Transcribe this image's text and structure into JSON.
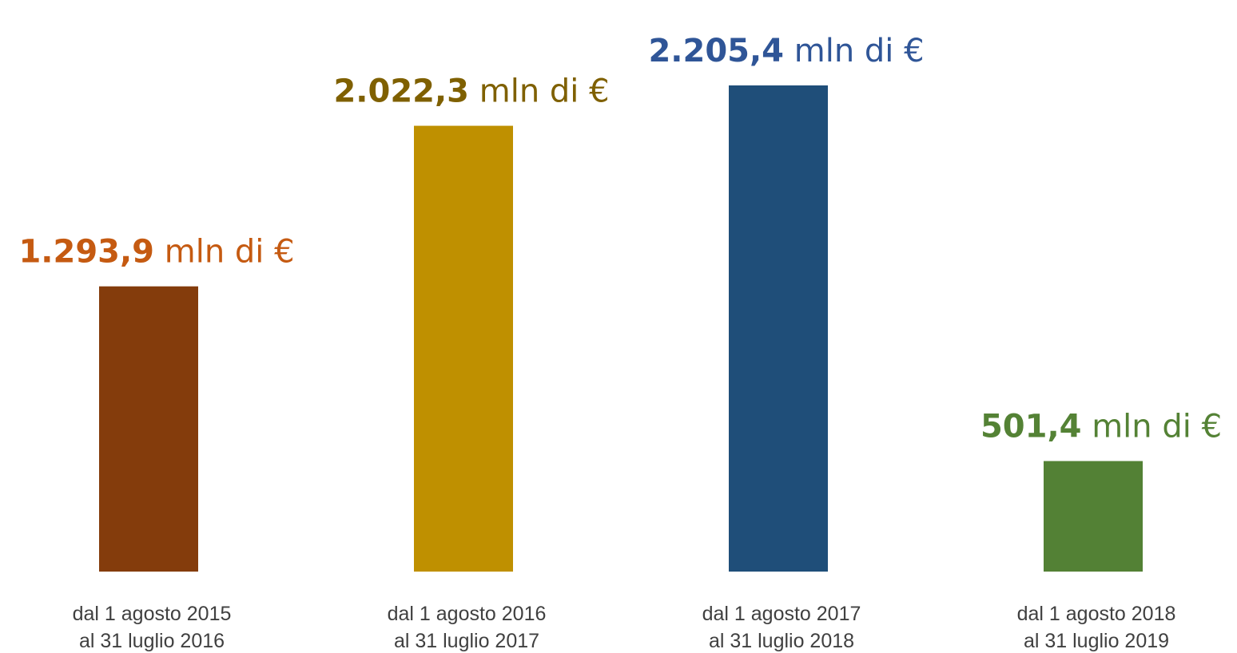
{
  "chart_data": {
    "type": "bar",
    "categories": [
      [
        "dal 1 agosto 2015",
        "al 31 luglio 2016"
      ],
      [
        "dal 1 agosto 2016",
        "al 31 luglio 2017"
      ],
      [
        "dal 1 agosto 2017",
        "al 31 luglio 2018"
      ],
      [
        "dal 1 agosto 2018",
        "al 31 luglio 2019"
      ]
    ],
    "values": [
      1293.9,
      2022.3,
      2205.4,
      501.4
    ],
    "value_labels": [
      "1.293,9",
      "2.022,3",
      "2.205,4",
      "501,4"
    ],
    "value_unit": "mln di €",
    "colors": [
      "#843c0c",
      "#bf9000",
      "#1f4e79",
      "#538135"
    ],
    "label_colors": [
      "#c55a11",
      "#7f6000",
      "#2f5597",
      "#548235"
    ]
  }
}
